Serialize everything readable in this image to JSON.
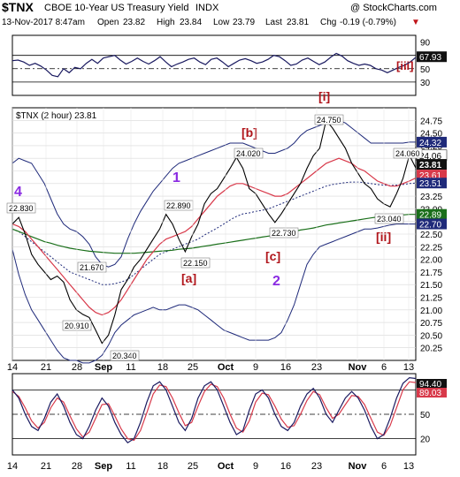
{
  "header": {
    "symbol": "$TNX",
    "name": "CBOE 10-Year US Treasury Yield",
    "exchange": "INDX",
    "copyright": "@ StockCharts.com",
    "date_time": "13-Nov-2017 8:47am",
    "open_label": "Open",
    "open": "23.82",
    "high_label": "High",
    "high": "23.84",
    "low_label": "Low",
    "low": "23.79",
    "last_label": "Last",
    "last": "23.81",
    "chg_label": "Chg",
    "chg": "-0.19 (-0.79%)",
    "down_arrow": "▼"
  },
  "colors": {
    "price": "#000000",
    "bollinger": "#1f2a7a",
    "ma_fast": "#d8394a",
    "ma_slow": "#1a6f1a",
    "ma_dotted": "#1f2a7a",
    "wave_purple": "#8a2be2",
    "wave_red": "#b0141a",
    "rsi_line": "#1a1a60",
    "stoch_red": "#d8394a",
    "label_dark_bg": "#111111",
    "label_green_bg": "#1a6f1a",
    "label_blue_bg": "#1f2a7a"
  },
  "chart_data": [
    {
      "type": "line",
      "panel": "indicator-top",
      "y_ticks": [
        "90",
        "70",
        "50",
        "30"
      ],
      "ylim": [
        10,
        100
      ],
      "last_value_label": "67.93",
      "wave_label": "[iii]",
      "series": [
        {
          "name": "",
          "values": [
            62,
            63,
            60,
            55,
            58,
            54,
            48,
            40,
            38,
            50,
            44,
            52,
            50,
            58,
            64,
            58,
            66,
            68,
            70,
            63,
            57,
            61,
            66,
            61,
            57,
            62,
            68,
            60,
            53,
            57,
            60,
            64,
            66,
            60,
            56,
            64,
            66,
            60,
            53,
            58,
            63,
            65,
            62,
            58,
            60,
            64,
            70,
            68,
            62,
            55,
            57,
            63,
            66,
            61,
            56,
            60,
            67,
            73,
            69,
            62,
            58,
            55,
            57,
            55,
            50,
            48,
            44,
            48,
            52,
            55,
            60,
            67
          ]
        }
      ]
    },
    {
      "type": "line",
      "panel": "price",
      "title": "$TNX (2 hour) 23.81",
      "ylim": [
        20.0,
        25.0
      ],
      "y_ticks": [
        "24.75",
        "24.50",
        "24.25",
        "24.00",
        "23.75",
        "23.50",
        "23.25",
        "23.00",
        "22.75",
        "22.50",
        "22.25",
        "22.00",
        "21.75",
        "21.50",
        "21.25",
        "21.00",
        "20.75",
        "20.50",
        "20.25"
      ],
      "x_ticks": [
        "14",
        "21",
        "28",
        "Sep",
        "11",
        "18",
        "25",
        "Oct",
        "9",
        "16",
        "23",
        "Nov",
        "6",
        "13"
      ],
      "price": [
        22.7,
        22.83,
        22.5,
        22.1,
        21.9,
        21.75,
        21.6,
        21.67,
        21.55,
        21.2,
        21.0,
        20.91,
        20.85,
        20.6,
        20.34,
        20.5,
        20.9,
        21.4,
        21.6,
        21.85,
        22.0,
        22.2,
        22.4,
        22.6,
        22.89,
        22.7,
        22.4,
        22.15,
        22.45,
        22.7,
        23.1,
        23.3,
        23.4,
        23.6,
        23.8,
        24.02,
        23.8,
        23.4,
        23.3,
        23.1,
        22.9,
        22.73,
        22.9,
        23.1,
        23.3,
        23.5,
        23.8,
        24.05,
        24.2,
        24.75,
        24.6,
        24.4,
        24.2,
        23.9,
        23.7,
        23.5,
        23.4,
        23.2,
        23.1,
        23.04,
        23.3,
        23.6,
        24.06,
        23.81
      ],
      "bb_upper": [
        23.9,
        24.0,
        23.95,
        23.9,
        23.7,
        23.5,
        23.2,
        22.9,
        22.7,
        22.6,
        22.55,
        22.45,
        22.3,
        22.05,
        21.9,
        21.85,
        21.9,
        22.05,
        22.4,
        22.7,
        22.95,
        23.15,
        23.35,
        23.5,
        23.65,
        23.8,
        23.9,
        23.95,
        24.0,
        24.05,
        24.1,
        24.15,
        24.2,
        24.25,
        24.3,
        24.3,
        24.3,
        24.25,
        24.2,
        24.15,
        24.1,
        24.1,
        24.15,
        24.2,
        24.3,
        24.45,
        24.55,
        24.6,
        24.65,
        24.7,
        24.75,
        24.75,
        24.7,
        24.6,
        24.5,
        24.4,
        24.3,
        24.3,
        24.3,
        24.3,
        24.3,
        24.3,
        24.32,
        24.32
      ],
      "bb_lower": [
        22.2,
        21.7,
        21.3,
        21.0,
        20.8,
        20.6,
        20.4,
        20.2,
        20.05,
        20.0,
        20.0,
        19.95,
        19.95,
        20.0,
        20.1,
        20.3,
        20.55,
        20.7,
        20.8,
        20.9,
        20.95,
        21.0,
        21.05,
        21.0,
        21.0,
        21.05,
        21.1,
        21.1,
        21.05,
        21.0,
        20.9,
        20.8,
        20.7,
        20.6,
        20.55,
        20.5,
        20.45,
        20.4,
        20.4,
        20.4,
        20.4,
        20.45,
        20.55,
        20.8,
        21.1,
        21.5,
        21.9,
        22.1,
        22.25,
        22.3,
        22.35,
        22.4,
        22.45,
        22.5,
        22.55,
        22.6,
        22.6,
        22.62,
        22.65,
        22.68,
        22.7,
        22.7,
        22.7,
        22.7
      ],
      "ma_fast": [
        22.7,
        22.65,
        22.55,
        22.4,
        22.25,
        22.1,
        21.95,
        21.8,
        21.65,
        21.5,
        21.35,
        21.2,
        21.05,
        20.95,
        20.9,
        20.95,
        21.05,
        21.2,
        21.4,
        21.6,
        21.8,
        22.0,
        22.15,
        22.3,
        22.4,
        22.45,
        22.5,
        22.55,
        22.65,
        22.8,
        22.95,
        23.1,
        23.25,
        23.35,
        23.45,
        23.5,
        23.5,
        23.45,
        23.4,
        23.35,
        23.3,
        23.25,
        23.25,
        23.3,
        23.4,
        23.5,
        23.6,
        23.7,
        23.8,
        23.9,
        23.95,
        24.0,
        23.95,
        23.9,
        23.8,
        23.75,
        23.65,
        23.55,
        23.5,
        23.45,
        23.45,
        23.5,
        23.55,
        23.61
      ],
      "ma_dotted": [
        22.6,
        22.55,
        22.45,
        22.35,
        22.25,
        22.15,
        22.05,
        21.95,
        21.85,
        21.75,
        21.7,
        21.65,
        21.6,
        21.55,
        21.5,
        21.5,
        21.52,
        21.55,
        21.6,
        21.7,
        21.8,
        21.9,
        22.0,
        22.1,
        22.15,
        22.2,
        22.25,
        22.3,
        22.35,
        22.4,
        22.48,
        22.55,
        22.62,
        22.7,
        22.78,
        22.85,
        22.9,
        22.92,
        22.95,
        22.97,
        23.0,
        23.05,
        23.1,
        23.15,
        23.2,
        23.25,
        23.3,
        23.35,
        23.4,
        23.45,
        23.48,
        23.5,
        23.52,
        23.53,
        23.53,
        23.52,
        23.5,
        23.48,
        23.47,
        23.46,
        23.47,
        23.48,
        23.5,
        23.51
      ],
      "ma_slow": [
        22.6,
        22.55,
        22.5,
        22.45,
        22.4,
        22.35,
        22.32,
        22.28,
        22.25,
        22.22,
        22.2,
        22.18,
        22.16,
        22.15,
        22.14,
        22.13,
        22.12,
        22.12,
        22.12,
        22.12,
        22.13,
        22.14,
        22.15,
        22.16,
        22.17,
        22.18,
        22.2,
        22.21,
        22.22,
        22.24,
        22.26,
        22.28,
        22.3,
        22.32,
        22.34,
        22.36,
        22.38,
        22.4,
        22.42,
        22.44,
        22.46,
        22.48,
        22.5,
        22.52,
        22.55,
        22.58,
        22.6,
        22.62,
        22.65,
        22.68,
        22.7,
        22.72,
        22.74,
        22.76,
        22.78,
        22.8,
        22.82,
        22.84,
        22.85,
        22.86,
        22.87,
        22.88,
        22.89,
        22.89
      ],
      "right_labels": [
        "24.32",
        "24.06",
        "23.81",
        "23.61",
        "23.51",
        "22.89",
        "22.70"
      ],
      "peak_labels": [
        "22.830",
        "21.670",
        "20.910",
        "20.340",
        "22.890",
        "22.150",
        "24.020",
        "22.730",
        "24.750",
        "23.040",
        "24.060"
      ],
      "wave_labels": [
        "4",
        "1",
        "2",
        "[a]",
        "[b]",
        "[c]",
        "[i]",
        "[ii]"
      ]
    },
    {
      "type": "line",
      "panel": "indicator-bottom",
      "y_ticks": [
        "80",
        "50",
        "20"
      ],
      "ylim": [
        0,
        100
      ],
      "last_value_labels": [
        "94.40",
        "89.03"
      ],
      "series": [
        {
          "name": "",
          "values": [
            80,
            70,
            50,
            35,
            30,
            45,
            65,
            75,
            60,
            40,
            25,
            20,
            35,
            55,
            70,
            60,
            40,
            25,
            15,
            20,
            40,
            65,
            85,
            90,
            80,
            60,
            40,
            30,
            45,
            70,
            85,
            90,
            80,
            60,
            40,
            25,
            30,
            55,
            75,
            80,
            70,
            50,
            35,
            30,
            40,
            60,
            75,
            82,
            70,
            50,
            40,
            55,
            70,
            78,
            70,
            55,
            35,
            20,
            25,
            45,
            70,
            88,
            95,
            94
          ]
        },
        {
          "name": "",
          "values": [
            78,
            72,
            58,
            42,
            33,
            40,
            58,
            70,
            65,
            48,
            32,
            22,
            28,
            45,
            62,
            63,
            48,
            32,
            20,
            18,
            30,
            52,
            75,
            86,
            84,
            70,
            52,
            36,
            40,
            60,
            78,
            87,
            84,
            70,
            50,
            33,
            28,
            42,
            65,
            76,
            74,
            60,
            44,
            34,
            36,
            50,
            67,
            78,
            74,
            58,
            45,
            50,
            62,
            73,
            72,
            62,
            45,
            28,
            24,
            36,
            58,
            80,
            90,
            89
          ]
        }
      ]
    }
  ]
}
